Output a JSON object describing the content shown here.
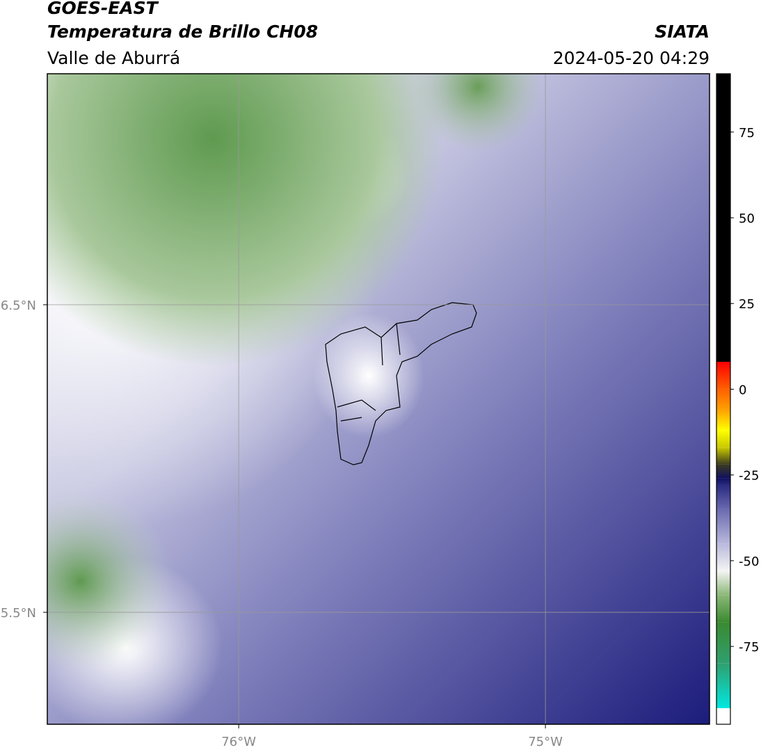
{
  "header": {
    "title": "GOES-EAST",
    "subtitle": "Temperatura de Brillo CH08",
    "source": "SIATA",
    "region": "Valle de Aburrá",
    "datetime": "2024-05-20 04:29"
  },
  "map": {
    "xlim": [
      -76.624,
      -74.465
    ],
    "ylim": [
      5.136,
      7.251
    ],
    "xticks": [
      {
        "value": -76,
        "label": "76°W"
      },
      {
        "value": -75,
        "label": "75°W"
      }
    ],
    "yticks": [
      {
        "value": 6.5,
        "label": "6.5°N"
      },
      {
        "value": 5.5,
        "label": "5.5°N"
      }
    ],
    "grid": true
  },
  "colorbar": {
    "lim": [
      -97.7,
      92
    ],
    "ticks": [
      75,
      50,
      25,
      0,
      -25,
      -50,
      -75
    ],
    "stops": [
      {
        "value": -97.7,
        "color": "#ffffff"
      },
      {
        "value": -93,
        "color": "#ffffff"
      },
      {
        "value": -93,
        "color": "#00e8e0"
      },
      {
        "value": -80,
        "color": "#2fa070"
      },
      {
        "value": -68,
        "color": "#3a8a30"
      },
      {
        "value": -60,
        "color": "#8cb878"
      },
      {
        "value": -53,
        "color": "#f4f4f4"
      },
      {
        "value": -45,
        "color": "#b8b8dc"
      },
      {
        "value": -35,
        "color": "#6a6ab0"
      },
      {
        "value": -28,
        "color": "#2a2a80"
      },
      {
        "value": -26,
        "color": "#101060"
      },
      {
        "value": -22,
        "color": "#3a3a20"
      },
      {
        "value": -17,
        "color": "#c8c800"
      },
      {
        "value": -12,
        "color": "#ffff00"
      },
      {
        "value": -6,
        "color": "#ffa000"
      },
      {
        "value": 0,
        "color": "#ff6000"
      },
      {
        "value": 8,
        "color": "#ff0000"
      },
      {
        "value": 8,
        "color": "#000000"
      },
      {
        "value": 92,
        "color": "#000000"
      }
    ]
  }
}
